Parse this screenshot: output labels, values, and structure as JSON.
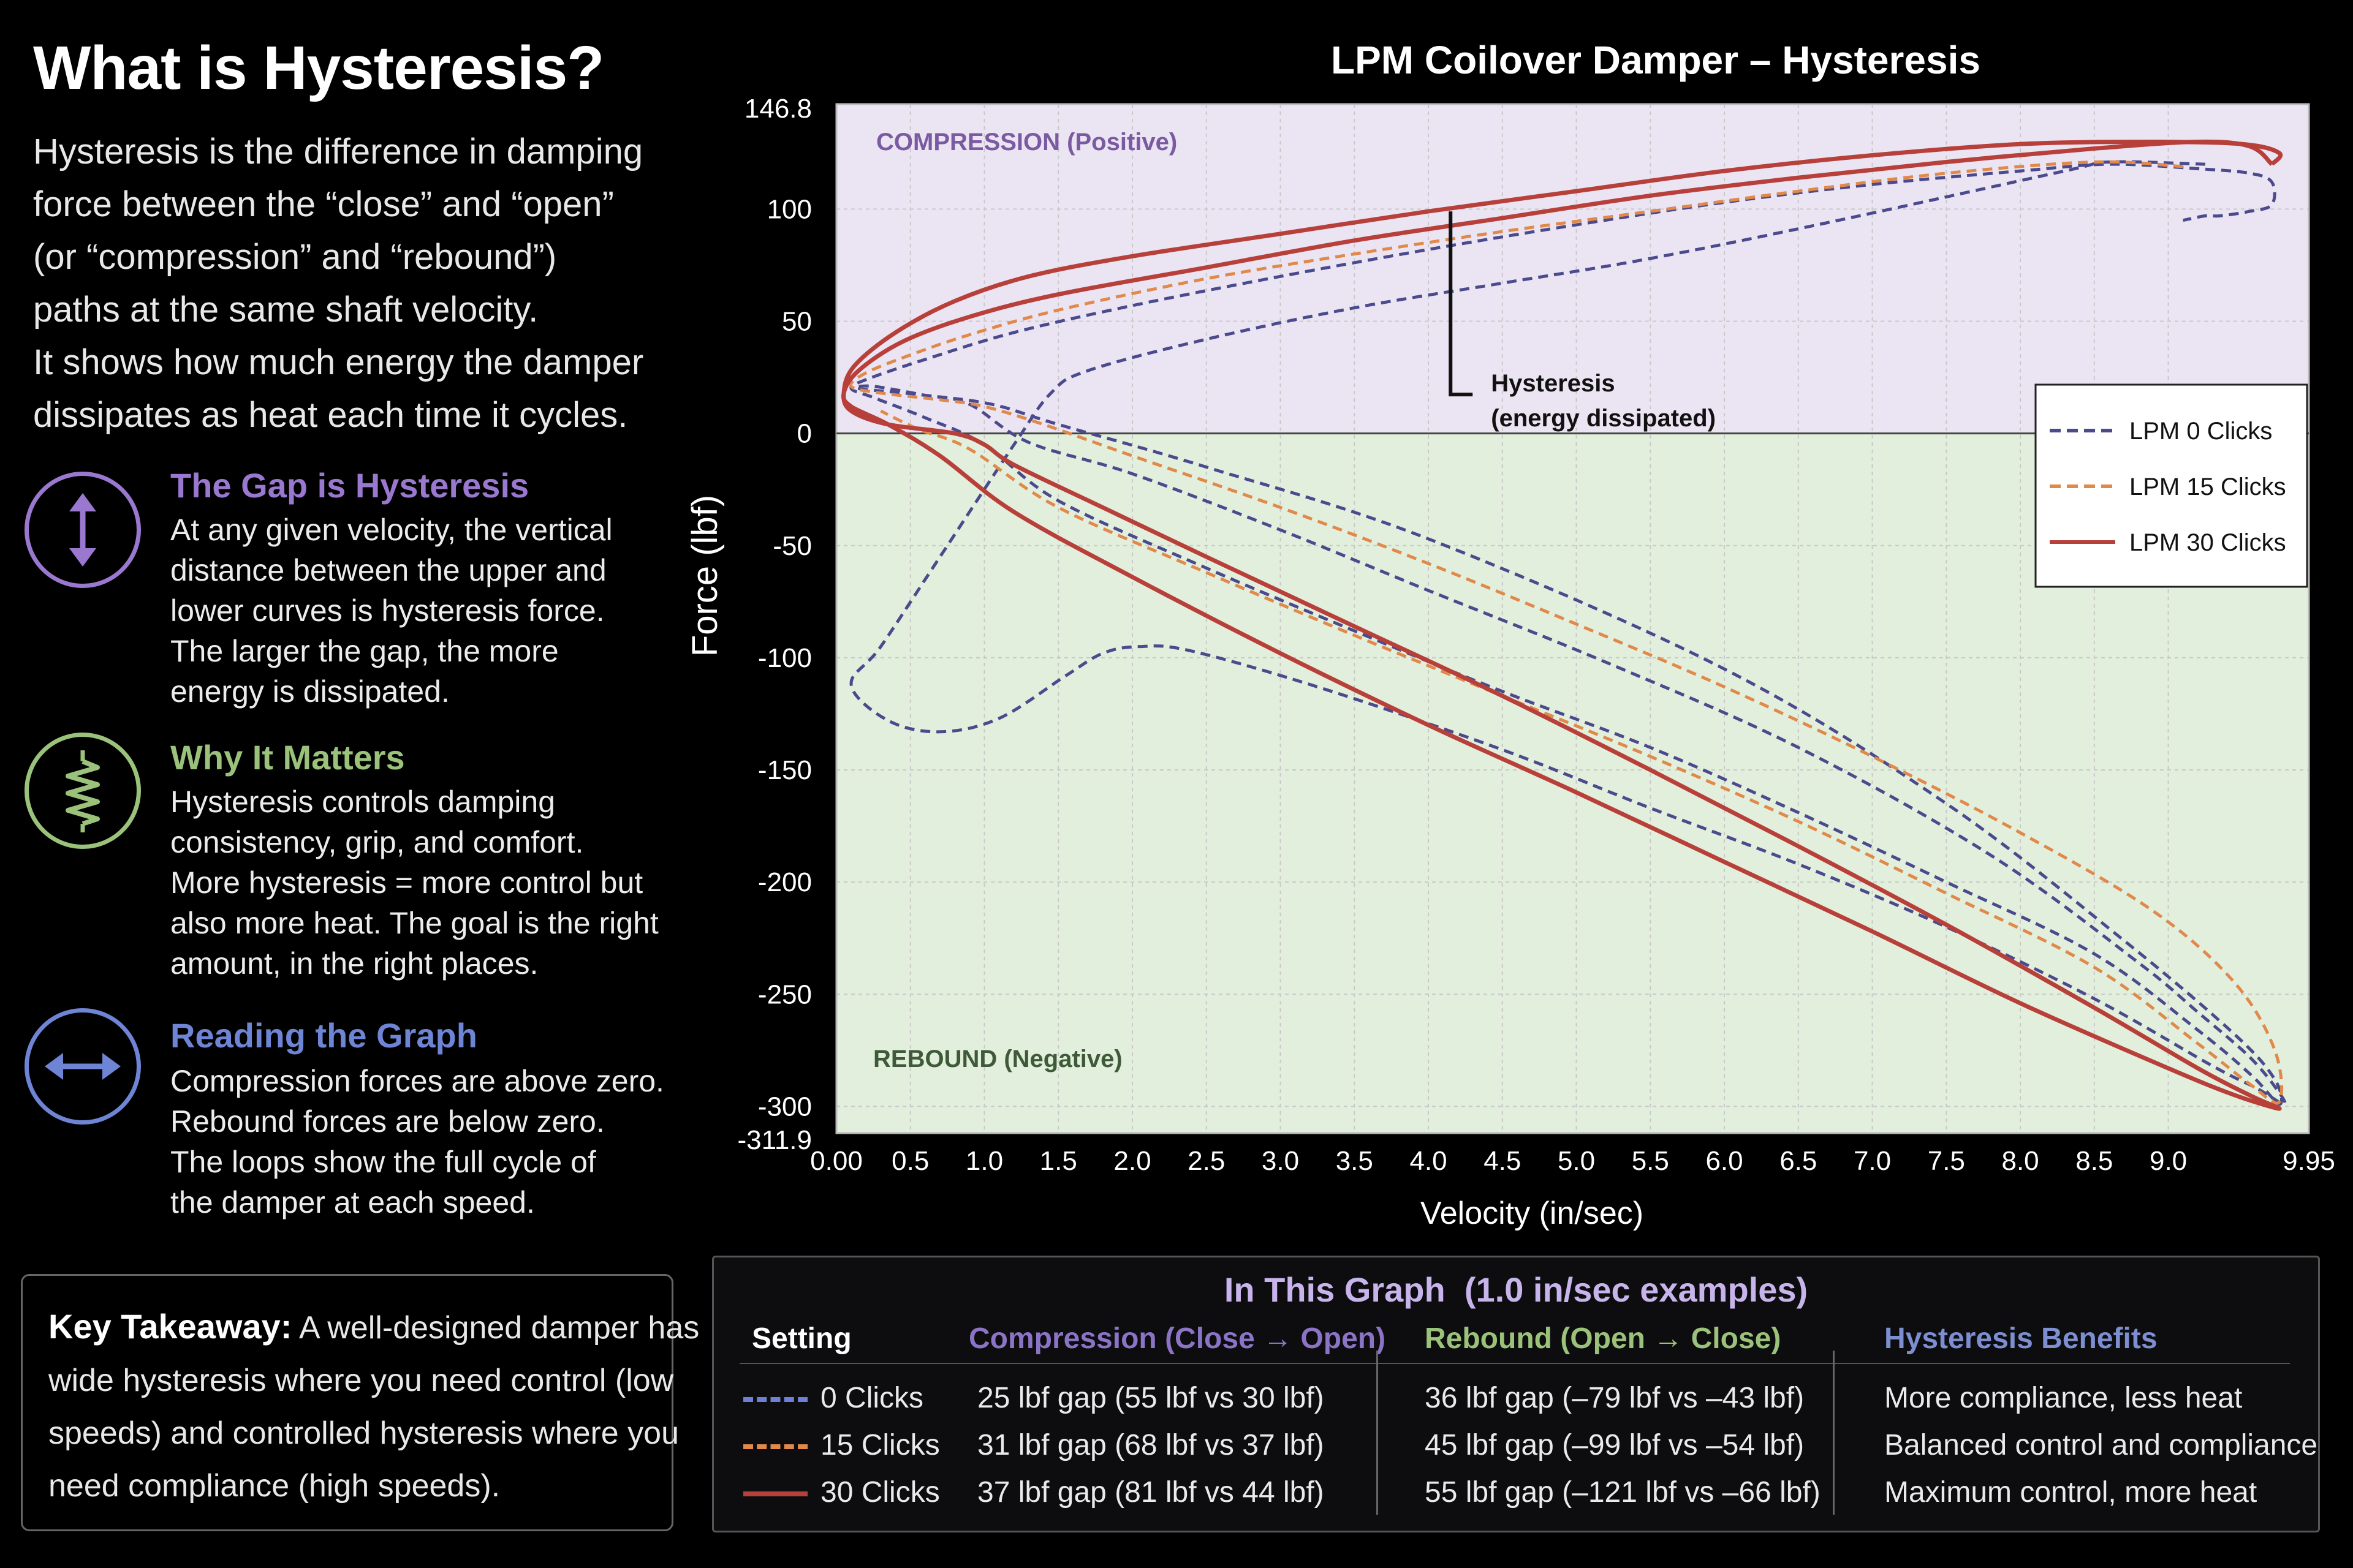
{
  "left": {
    "title": "What is Hysteresis?",
    "intro_lines": [
      "Hysteresis is the difference in damping",
      "force between the “close” and “open”",
      "(or “compression” and “rebound”)",
      "paths at the same shaft velocity.",
      "It shows how much energy the damper",
      "dissipates as heat each time it cycles."
    ],
    "blocks": [
      {
        "icon": "vertical-arrows-icon",
        "title": "The Gap is Hysteresis",
        "color": "#9a78d0",
        "lines": [
          "At any given velocity, the vertical",
          "distance between the upper and",
          "lower curves is hysteresis force.",
          "The larger the gap, the more",
          "energy is dissipated."
        ]
      },
      {
        "icon": "spring-icon",
        "title": "Why It Matters",
        "color": "#9bc27a",
        "lines": [
          "Hysteresis controls damping",
          "consistency, grip, and comfort.",
          "More hysteresis = more control but",
          "also more heat. The goal is the right",
          "amount, in the right places."
        ]
      },
      {
        "icon": "horizontal-arrows-icon",
        "title": "Reading the Graph",
        "color": "#6e84d4",
        "lines": [
          "Compression forces are above zero.",
          "Rebound forces are below zero.",
          "The loops show the full cycle of",
          "the damper at each speed."
        ]
      }
    ],
    "takeaway": {
      "label": "Key Takeaway:",
      "lines": [
        " A well-designed damper has",
        "wide hysteresis where you need control (low",
        "speeds) and controlled hysteresis where you",
        "need compliance (high speeds)."
      ]
    }
  },
  "colors": {
    "lpm0": "#4a4a8c",
    "lpm15": "#e0894a",
    "lpm30": "#b8403a",
    "compression_bg": "#ebe4f3",
    "rebound_bg": "#e2efdc",
    "purple_text": "#7a5aa0",
    "green_text": "#3e5a38"
  },
  "chart_data": {
    "type": "line",
    "title": "LPM Coilover Damper – Hysteresis",
    "xlabel": "Velocity (in/sec)",
    "ylabel": "Force (lbf)",
    "xlim": [
      0,
      9.95
    ],
    "ylim": [
      -311.9,
      146.8
    ],
    "xticks": [
      "0.00",
      "0.5",
      "1.0",
      "1.5",
      "2.0",
      "2.5",
      "3.0",
      "3.5",
      "4.0",
      "4.5",
      "5.0",
      "5.5",
      "6.0",
      "6.5",
      "7.0",
      "7.5",
      "8.0",
      "8.5",
      "9.0",
      "9.95"
    ],
    "xtick_values": [
      0,
      0.5,
      1.0,
      1.5,
      2.0,
      2.5,
      3.0,
      3.5,
      4.0,
      4.5,
      5.0,
      5.5,
      6.0,
      6.5,
      7.0,
      7.5,
      8.0,
      8.5,
      9.0,
      9.95
    ],
    "yticks": [
      "146.8",
      "100",
      "50",
      "0",
      "-50",
      "-100",
      "-150",
      "-200",
      "-250",
      "-300",
      "-311.9"
    ],
    "ytick_values": [
      146.8,
      100,
      50,
      0,
      -50,
      -100,
      -150,
      -200,
      -250,
      -300,
      -311.9
    ],
    "grid": true,
    "legend_position": "right",
    "regions": {
      "upper": "COMPRESSION (Positive)",
      "lower": "REBOUND (Negative)"
    },
    "annotation": {
      "line1": "Hysteresis",
      "line2": "(energy dissipated)",
      "x": 4.15,
      "y_top": 99,
      "y_bottom": 31
    },
    "series": [
      {
        "name": "LPM 0 Clicks",
        "style": "dashed",
        "points": [
          [
            9.25,
            120
          ],
          [
            8.6,
            121
          ],
          [
            8.3,
            117
          ],
          [
            6.7,
            94
          ],
          [
            5.5,
            78
          ],
          [
            4.5,
            67
          ],
          [
            3.5,
            56
          ],
          [
            2.5,
            42
          ],
          [
            1.7,
            28
          ],
          [
            1.45,
            18
          ],
          [
            1.2,
            -5
          ],
          [
            0.7,
            -55
          ],
          [
            0.3,
            -95
          ],
          [
            0.1,
            -112
          ],
          [
            0.35,
            -128
          ],
          [
            0.7,
            -133
          ],
          [
            1.1,
            -127
          ],
          [
            1.55,
            -108
          ],
          [
            1.8,
            -98
          ],
          [
            2.05,
            -95
          ],
          [
            2.4,
            -97
          ],
          [
            3.3,
            -114
          ],
          [
            4.5,
            -141
          ],
          [
            5.5,
            -167
          ],
          [
            6.5,
            -192
          ],
          [
            7.5,
            -220
          ],
          [
            8.5,
            -252
          ],
          [
            9.3,
            -282
          ],
          [
            9.6,
            -292
          ],
          [
            9.78,
            -299
          ],
          [
            9.74,
            -293
          ],
          [
            9.55,
            -278
          ],
          [
            9.2,
            -258
          ],
          [
            8.8,
            -236
          ],
          [
            7.8,
            -188
          ],
          [
            6.5,
            -140
          ],
          [
            5.2,
            -102
          ],
          [
            4.0,
            -70
          ],
          [
            3.0,
            -43
          ],
          [
            2.0,
            -18
          ],
          [
            1.3,
            -4
          ],
          [
            0.9,
            13
          ],
          [
            0.6,
            17
          ],
          [
            0.25,
            21
          ],
          [
            0.15,
            20
          ],
          [
            0.6,
            17
          ],
          [
            1.05,
            13
          ],
          [
            1.5,
            4
          ],
          [
            2.5,
            -15
          ],
          [
            4,
            -47
          ],
          [
            6,
            -105
          ],
          [
            7.5,
            -165
          ],
          [
            8.7,
            -226
          ],
          [
            9.45,
            -268
          ],
          [
            9.72,
            -288
          ],
          [
            9.75,
            -299
          ],
          [
            9.56,
            -286
          ],
          [
            9.2,
            -266
          ],
          [
            8.5,
            -232
          ],
          [
            7.5,
            -200
          ],
          [
            6.5,
            -169
          ],
          [
            5.5,
            -140
          ],
          [
            4.5,
            -115
          ],
          [
            3.5,
            -88
          ],
          [
            2.5,
            -60
          ],
          [
            1.5,
            -30
          ],
          [
            1.0,
            -5
          ],
          [
            0.6,
            7
          ],
          [
            0.25,
            16
          ],
          [
            0.1,
            20
          ],
          [
            0.2,
            24
          ],
          [
            0.6,
            33
          ],
          [
            1.2,
            45
          ],
          [
            2.0,
            57
          ],
          [
            3.0,
            70
          ],
          [
            4.0,
            82
          ],
          [
            5.0,
            93
          ],
          [
            6.0,
            103
          ],
          [
            7.0,
            111
          ],
          [
            8.0,
            117
          ],
          [
            8.6,
            120
          ],
          [
            9.2,
            118
          ],
          [
            9.55,
            116
          ],
          [
            9.7,
            112
          ],
          [
            9.7,
            102
          ],
          [
            9.55,
            99
          ],
          [
            9.35,
            97
          ],
          [
            9.25,
            97
          ],
          [
            9.1,
            95
          ]
        ]
      },
      {
        "name": "LPM 15 Clicks",
        "style": "dashed",
        "points": [
          [
            9.1,
            119
          ],
          [
            8.5,
            121
          ],
          [
            7.5,
            116
          ],
          [
            6.5,
            108
          ],
          [
            5.5,
            99
          ],
          [
            4.5,
            90
          ],
          [
            3.5,
            80
          ],
          [
            2.5,
            69
          ],
          [
            1.5,
            55
          ],
          [
            0.9,
            44
          ],
          [
            0.5,
            35
          ],
          [
            0.2,
            27
          ],
          [
            0.1,
            21
          ],
          [
            0.3,
            18
          ],
          [
            0.7,
            15
          ],
          [
            1.0,
            12
          ],
          [
            1.4,
            4
          ],
          [
            2.0,
            -10
          ],
          [
            3.0,
            -33
          ],
          [
            4.0,
            -58
          ],
          [
            5.0,
            -85
          ],
          [
            6.0,
            -113
          ],
          [
            7.0,
            -144
          ],
          [
            8.0,
            -178
          ],
          [
            8.9,
            -213
          ],
          [
            9.45,
            -245
          ],
          [
            9.72,
            -275
          ],
          [
            9.75,
            -298
          ],
          [
            9.55,
            -290
          ],
          [
            9.2,
            -272
          ],
          [
            8.5,
            -238
          ],
          [
            7.5,
            -205
          ],
          [
            6.5,
            -173
          ],
          [
            5.5,
            -144
          ],
          [
            4.5,
            -117
          ],
          [
            3.5,
            -90
          ],
          [
            2.5,
            -62
          ],
          [
            1.5,
            -33
          ],
          [
            0.9,
            -7
          ],
          [
            0.55,
            2
          ],
          [
            0.3,
            10
          ]
        ]
      },
      {
        "name": "LPM 30 Clicks",
        "style": "solid",
        "points": [
          [
            9.7,
            120
          ],
          [
            9.75,
            125
          ],
          [
            9.5,
            129
          ],
          [
            8.9,
            130
          ],
          [
            8.0,
            129
          ],
          [
            7.0,
            124
          ],
          [
            6.0,
            117
          ],
          [
            5.0,
            108
          ],
          [
            4.0,
            99
          ],
          [
            3.0,
            89
          ],
          [
            2.0,
            79
          ],
          [
            1.3,
            70
          ],
          [
            0.8,
            59
          ],
          [
            0.4,
            45
          ],
          [
            0.12,
            30
          ],
          [
            0.05,
            18
          ],
          [
            0.1,
            10
          ],
          [
            0.35,
            4
          ],
          [
            0.8,
            0
          ],
          [
            1.0,
            -5
          ],
          [
            1.2,
            -14
          ],
          [
            1.8,
            -33
          ],
          [
            2.5,
            -55
          ],
          [
            3.5,
            -86
          ],
          [
            4.5,
            -117
          ],
          [
            5.5,
            -150
          ],
          [
            6.5,
            -184
          ],
          [
            7.5,
            -219
          ],
          [
            8.5,
            -256
          ],
          [
            9.2,
            -283
          ],
          [
            9.55,
            -295
          ],
          [
            9.75,
            -301
          ],
          [
            9.45,
            -295
          ],
          [
            9.0,
            -283
          ],
          [
            8.0,
            -254
          ],
          [
            7.0,
            -222
          ],
          [
            6.0,
            -191
          ],
          [
            5.0,
            -160
          ],
          [
            4.0,
            -130
          ],
          [
            3.0,
            -98
          ],
          [
            2.0,
            -64
          ],
          [
            1.2,
            -35
          ],
          [
            0.7,
            -10
          ],
          [
            0.35,
            4
          ],
          [
            0.1,
            12
          ],
          [
            0.05,
            18
          ],
          [
            0.15,
            28
          ],
          [
            0.45,
            41
          ],
          [
            0.9,
            52
          ],
          [
            1.5,
            62
          ],
          [
            2.5,
            74
          ],
          [
            3.5,
            86
          ],
          [
            4.5,
            96
          ],
          [
            5.5,
            106
          ],
          [
            6.5,
            114
          ],
          [
            7.5,
            121
          ],
          [
            8.5,
            127
          ],
          [
            9.2,
            130
          ],
          [
            9.55,
            128
          ],
          [
            9.7,
            120
          ]
        ]
      }
    ]
  },
  "table": {
    "title": "In This Graph",
    "subtitle": "(1.0 in/sec examples)",
    "headers": {
      "setting": "Setting",
      "compression": "Compression (Close → Open)",
      "rebound": "Rebound (Open → Close)",
      "benefits": "Hysteresis Benefits"
    },
    "header_colors": {
      "compression": "#8b74c6",
      "rebound": "#9bc27a",
      "benefits": "#7d8fd0"
    },
    "rows": [
      {
        "setting": "0 Clicks",
        "compression": "25 lbf gap (55 lbf vs 30 lbf)",
        "rebound": "36 lbf gap (–79 lbf vs –43 lbf)",
        "benefits": "More compliance, less heat"
      },
      {
        "setting": "15 Clicks",
        "compression": "31 lbf gap (68 lbf vs 37 lbf)",
        "rebound": "45 lbf gap (–99 lbf vs –54 lbf)",
        "benefits": "Balanced control and compliance"
      },
      {
        "setting": "30 Clicks",
        "compression": "37 lbf gap (81 lbf vs 44 lbf)",
        "rebound": "55 lbf gap (–121 lbf vs –66 lbf)",
        "benefits": "Maximum control, more heat"
      }
    ]
  }
}
